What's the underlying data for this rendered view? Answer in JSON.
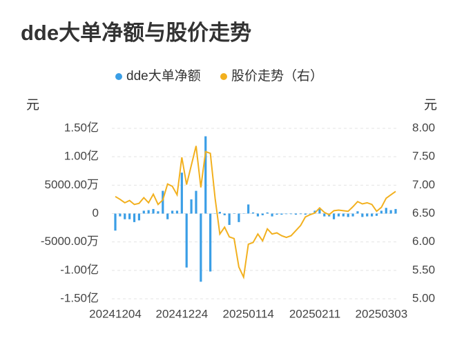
{
  "chart_data": {
    "type": "combo",
    "title": "dde大单净额与股价走势",
    "y_label": "元",
    "y2_label": "元",
    "categories": [
      "20241204",
      null,
      null,
      null,
      null,
      null,
      null,
      null,
      null,
      null,
      null,
      null,
      null,
      null,
      "20241224",
      null,
      null,
      null,
      null,
      null,
      null,
      null,
      null,
      null,
      null,
      null,
      null,
      null,
      "20250114",
      null,
      null,
      null,
      null,
      null,
      null,
      null,
      null,
      null,
      null,
      null,
      null,
      null,
      "20250211",
      null,
      null,
      null,
      null,
      null,
      null,
      null,
      null,
      null,
      null,
      null,
      null,
      null,
      "20250303",
      null,
      null,
      null
    ],
    "series": [
      {
        "name": "dde大单净额",
        "type": "bar",
        "color": "#3a9ee6",
        "values": [
          -30000000,
          -5000000,
          -10000000,
          -10000000,
          -15000000,
          -12000000,
          5000000,
          6000000,
          8000000,
          4000000,
          40000000,
          -10000000,
          5000000,
          5000000,
          72000000,
          -95000000,
          25000000,
          40000000,
          -120000000,
          136000000,
          -102000000,
          0,
          3000000,
          -3000000,
          -20000000,
          0,
          -15000000,
          0,
          16000000,
          2000000,
          -5000000,
          -3000000,
          2000000,
          -5000000,
          -2000000,
          -2000000,
          -1000000,
          -1000000,
          -2000000,
          -1000000,
          -2000000,
          -1000000,
          5000000,
          8000000,
          -5000000,
          -5000000,
          -10000000,
          -5000000,
          -5000000,
          -6000000,
          -5000000,
          4000000,
          -6000000,
          -5000000,
          -5000000,
          -4000000,
          5000000,
          10000000,
          6000000,
          8000000
        ]
      },
      {
        "name": "股价走势（右）",
        "type": "line",
        "axis": "y2",
        "color": "#f2b01e",
        "values": [
          6.8,
          6.75,
          6.69,
          6.73,
          6.66,
          6.68,
          6.78,
          6.69,
          6.84,
          6.66,
          6.74,
          7.02,
          6.98,
          6.83,
          7.49,
          7.01,
          7.35,
          7.69,
          6.96,
          7.59,
          7.56,
          6.77,
          6.14,
          6.26,
          6.09,
          6.06,
          5.56,
          5.38,
          5.96,
          5.99,
          6.14,
          6.02,
          6.23,
          6.14,
          6.16,
          6.11,
          6.08,
          6.11,
          6.2,
          6.29,
          6.44,
          6.48,
          6.51,
          6.6,
          6.52,
          6.48,
          6.55,
          6.56,
          6.55,
          6.54,
          6.62,
          6.71,
          6.67,
          6.69,
          6.66,
          6.54,
          6.61,
          6.77,
          6.83,
          6.89
        ]
      }
    ],
    "ylim": [
      -150000000,
      150000000
    ],
    "yticks": [
      {
        "value": -150000000,
        "label": "-1.50亿"
      },
      {
        "value": -100000000,
        "label": "-1.00亿"
      },
      {
        "value": -50000000,
        "label": "-5000.00万"
      },
      0,
      {
        "value": 50000000,
        "label": "5000.00万"
      },
      {
        "value": 100000000,
        "label": "1.00亿"
      },
      {
        "value": 150000000,
        "label": "1.50亿"
      }
    ],
    "y2lim": [
      5,
      8
    ],
    "y2ticks": [
      {
        "value": 5,
        "label": "5.00"
      },
      {
        "value": 5.5,
        "label": "5.50"
      },
      {
        "value": 6,
        "label": "6.00"
      },
      {
        "value": 6.5,
        "label": "6.50"
      },
      {
        "value": 7,
        "label": "7.00"
      },
      {
        "value": 7.5,
        "label": "7.50"
      },
      {
        "value": 8,
        "label": "8.00"
      }
    ],
    "grid": true,
    "legend": "top"
  }
}
